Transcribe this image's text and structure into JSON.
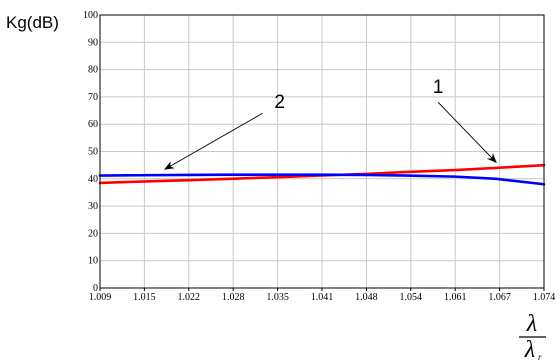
{
  "chart_data": {
    "type": "line",
    "title": "",
    "ylabel": "Kg(dB)",
    "xlabel_numerator": "λ",
    "xlabel_denominator": "λ",
    "xlabel_denominator_sub": "r",
    "xlim": [
      1.009,
      1.074
    ],
    "ylim": [
      0,
      100
    ],
    "x_ticks": [
      "1.009",
      "1.015",
      "1.022",
      "1.028",
      "1.035",
      "1.041",
      "1.048",
      "1.054",
      "1.061",
      "1.067",
      "1.074"
    ],
    "y_ticks": [
      "0",
      "10",
      "20",
      "30",
      "40",
      "50",
      "60",
      "70",
      "80",
      "90",
      "100"
    ],
    "grid": true,
    "series": [
      {
        "name": "1",
        "color": "#ff0000",
        "x": [
          1.009,
          1.015,
          1.022,
          1.028,
          1.035,
          1.041,
          1.048,
          1.054,
          1.061,
          1.067,
          1.074
        ],
        "y": [
          38.5,
          39.0,
          39.5,
          40.0,
          40.6,
          41.2,
          41.8,
          42.5,
          43.2,
          44.0,
          45.0
        ]
      },
      {
        "name": "2",
        "color": "#0000ff",
        "x": [
          1.009,
          1.015,
          1.022,
          1.028,
          1.035,
          1.041,
          1.048,
          1.054,
          1.061,
          1.067,
          1.074
        ],
        "y": [
          41.2,
          41.3,
          41.4,
          41.5,
          41.5,
          41.5,
          41.4,
          41.2,
          40.8,
          40.0,
          38.0
        ]
      }
    ],
    "annotations": [
      {
        "label": "1",
        "text_x": 1.0585,
        "text_y": 71.5,
        "arrow_from": [
          1.0585,
          68.0
        ],
        "arrow_to": [
          1.067,
          46.0
        ]
      },
      {
        "label": "2",
        "text_x": 1.0353,
        "text_y": 66.0,
        "arrow_from": [
          1.0328,
          64.0
        ],
        "arrow_to": [
          1.0185,
          43.5
        ]
      }
    ]
  }
}
